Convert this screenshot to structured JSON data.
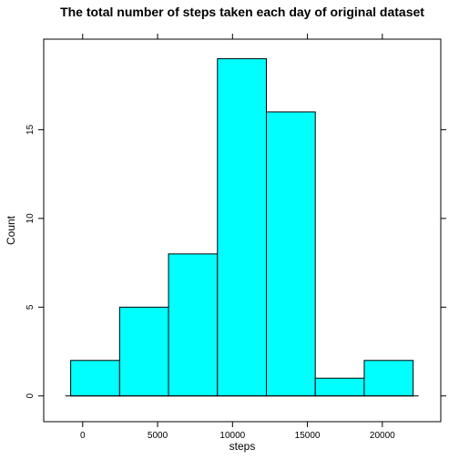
{
  "chart_data": {
    "type": "bar",
    "title": "The total number of steps taken each day of original dataset",
    "xlabel": "steps",
    "ylabel": "Count",
    "bin_edges": [
      -800,
      2465,
      5730,
      8995,
      12260,
      15525,
      18790,
      22055
    ],
    "counts": [
      2,
      5,
      8,
      19,
      16,
      1,
      2
    ],
    "xlim": [
      -2600,
      23900
    ],
    "ylim": [
      -1.45,
      20.1
    ],
    "xticks": [
      0,
      5000,
      10000,
      15000,
      20000
    ],
    "xtick_labels": [
      "0",
      "5000",
      "10000",
      "15000",
      "20000"
    ],
    "yticks": [
      0,
      5,
      10,
      15
    ],
    "ytick_labels": [
      "0",
      "5",
      "10",
      "15"
    ],
    "bar_color": "#00ffff",
    "bar_edge_color": "#000000",
    "grid": false
  }
}
